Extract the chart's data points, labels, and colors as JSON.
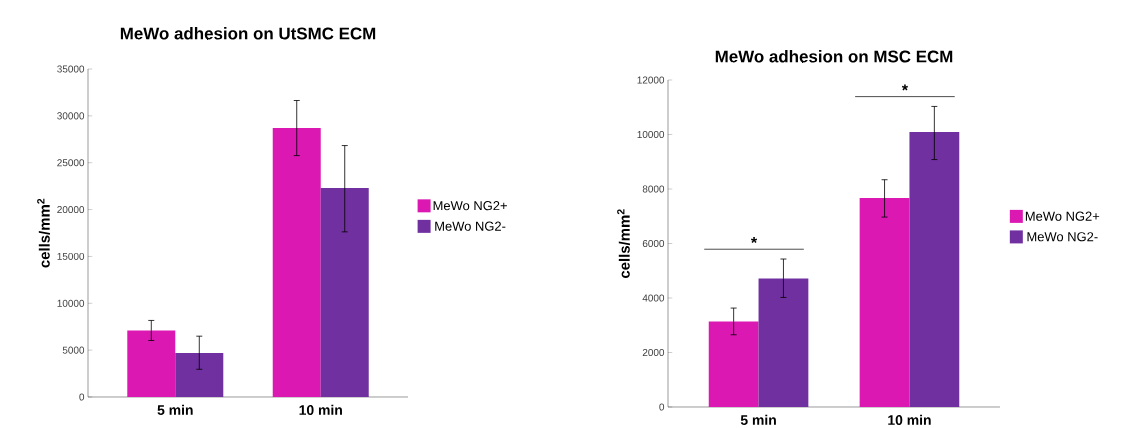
{
  "chart_data": [
    {
      "type": "bar",
      "title": "MeWo adhesion on UtSMC ECM",
      "ylabel": "cells/mm$^{2}$",
      "categories": [
        "5 min",
        "10 min"
      ],
      "series": [
        {
          "name": "MeWo NG2+",
          "color": "#db18b2",
          "values": [
            7100,
            28700
          ],
          "errors": [
            [
              6030,
              8170
            ],
            [
              25760,
              31640
            ]
          ]
        },
        {
          "name": "MeWo NG2-",
          "color": "#7030a0",
          "values": [
            4700,
            22300
          ],
          "errors": [
            [
              2960,
              6490
            ],
            [
              17620,
              26830
            ]
          ]
        }
      ],
      "ylim": [
        0,
        35000
      ],
      "yticks": [
        0,
        5000,
        10000,
        15000,
        20000,
        25000,
        30000,
        35000
      ],
      "legend": "right"
    },
    {
      "type": "bar",
      "title": "MeWo adhesion on MSC ECM",
      "ylabel": "cells/mm$^{2}$",
      "categories": [
        "5 min",
        "10 min"
      ],
      "series": [
        {
          "name": "MeWo NG2+",
          "color": "#db18b2",
          "values": [
            3140,
            7670
          ],
          "errors": [
            [
              2650,
              3630
            ],
            [
              6970,
              8340
            ]
          ]
        },
        {
          "name": "MeWo NG2-",
          "color": "#7030a0",
          "values": [
            4720,
            10090
          ],
          "errors": [
            [
              4020,
              5430
            ],
            [
              9080,
              11030
            ]
          ]
        }
      ],
      "ylim": [
        0,
        12000
      ],
      "yticks": [
        0,
        2000,
        4000,
        6000,
        8000,
        10000,
        12000
      ],
      "legend": "right",
      "annotations": [
        "*",
        "*"
      ]
    }
  ]
}
